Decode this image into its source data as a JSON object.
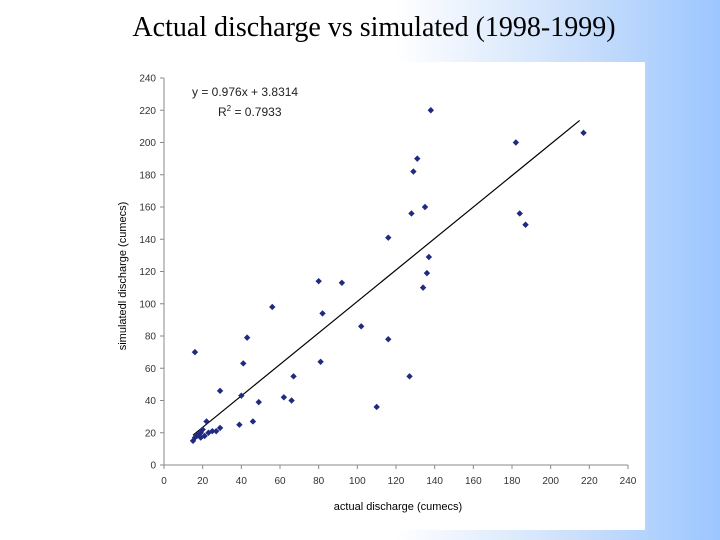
{
  "slide": {
    "title": "Actual discharge vs simulated (1998-1999)"
  },
  "chart_data": {
    "type": "scatter",
    "title": "Actual discharge vs simulated (1998-1999)",
    "xlabel": "actual discharge (cumecs)",
    "ylabel": "simulatedl discharge (cumecs)",
    "xlim": [
      0,
      240
    ],
    "ylim": [
      0,
      240
    ],
    "xticks": [
      "0",
      "20",
      "40",
      "60",
      "80",
      "100",
      "120",
      "140",
      "160",
      "180",
      "200",
      "220",
      "240"
    ],
    "yticks": [
      "0",
      "20",
      "40",
      "60",
      "80",
      "100",
      "120",
      "140",
      "160",
      "180",
      "200",
      "220",
      "240"
    ],
    "grid": false,
    "marker_color": "#1f2a80",
    "trendline": {
      "slope": 0.976,
      "intercept": 3.8314,
      "x_range": [
        15,
        215
      ]
    },
    "equation": "y = 0.976x + 3.8314",
    "r2_prefix": "R",
    "r2_sup": "2",
    "r2_value": " = 0.7933",
    "points": [
      {
        "x": 16,
        "y": 70
      },
      {
        "x": 15,
        "y": 15
      },
      {
        "x": 16,
        "y": 17
      },
      {
        "x": 17,
        "y": 18
      },
      {
        "x": 18,
        "y": 19
      },
      {
        "x": 19,
        "y": 20
      },
      {
        "x": 20,
        "y": 22
      },
      {
        "x": 19,
        "y": 17
      },
      {
        "x": 21,
        "y": 18
      },
      {
        "x": 22,
        "y": 27
      },
      {
        "x": 23,
        "y": 20
      },
      {
        "x": 25,
        "y": 21
      },
      {
        "x": 27,
        "y": 21
      },
      {
        "x": 29,
        "y": 23
      },
      {
        "x": 29,
        "y": 46
      },
      {
        "x": 39,
        "y": 25
      },
      {
        "x": 40,
        "y": 43
      },
      {
        "x": 41,
        "y": 63
      },
      {
        "x": 43,
        "y": 79
      },
      {
        "x": 46,
        "y": 27
      },
      {
        "x": 49,
        "y": 39
      },
      {
        "x": 56,
        "y": 98
      },
      {
        "x": 62,
        "y": 42
      },
      {
        "x": 66,
        "y": 40
      },
      {
        "x": 67,
        "y": 55
      },
      {
        "x": 80,
        "y": 114
      },
      {
        "x": 81,
        "y": 64
      },
      {
        "x": 82,
        "y": 94
      },
      {
        "x": 92,
        "y": 113
      },
      {
        "x": 102,
        "y": 86
      },
      {
        "x": 110,
        "y": 36
      },
      {
        "x": 116,
        "y": 78
      },
      {
        "x": 116,
        "y": 141
      },
      {
        "x": 127,
        "y": 55
      },
      {
        "x": 128,
        "y": 156
      },
      {
        "x": 129,
        "y": 182
      },
      {
        "x": 131,
        "y": 190
      },
      {
        "x": 134,
        "y": 110
      },
      {
        "x": 135,
        "y": 160
      },
      {
        "x": 136,
        "y": 119
      },
      {
        "x": 137,
        "y": 129
      },
      {
        "x": 138,
        "y": 220
      },
      {
        "x": 182,
        "y": 200
      },
      {
        "x": 184,
        "y": 156
      },
      {
        "x": 187,
        "y": 149
      },
      {
        "x": 217,
        "y": 206
      }
    ]
  }
}
